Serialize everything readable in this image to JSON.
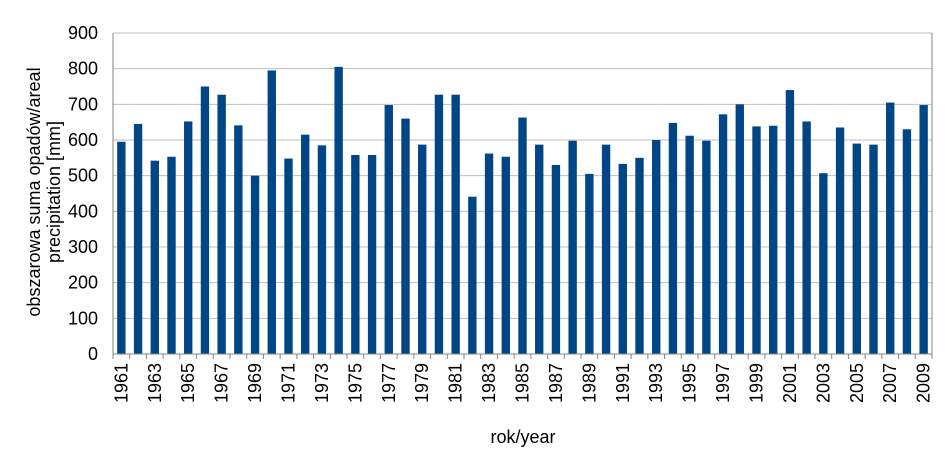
{
  "chart_data": {
    "type": "bar",
    "title": "",
    "xlabel": "rok/year",
    "ylabel_lines": [
      "obszarowa suma opadów/areal",
      "precipitation [mm]"
    ],
    "ylim": [
      0,
      900
    ],
    "yticks": [
      0,
      100,
      200,
      300,
      400,
      500,
      600,
      700,
      800,
      900
    ],
    "grid": "horizontal",
    "legend": "none",
    "bar_color": "#004586",
    "categories": [
      "1961",
      "1962",
      "1963",
      "1964",
      "1965",
      "1966",
      "1967",
      "1968",
      "1969",
      "1970",
      "1971",
      "1972",
      "1973",
      "1974",
      "1975",
      "1976",
      "1977",
      "1978",
      "1979",
      "1980",
      "1981",
      "1982",
      "1983",
      "1984",
      "1985",
      "1986",
      "1987",
      "1988",
      "1989",
      "1990",
      "1991",
      "1992",
      "1993",
      "1994",
      "1995",
      "1996",
      "1997",
      "1998",
      "1999",
      "2000",
      "2001",
      "2002",
      "2003",
      "2004",
      "2005",
      "2006",
      "2007",
      "2008",
      "2009"
    ],
    "tick_labels": [
      "1961",
      "1963",
      "1965",
      "1967",
      "1969",
      "1971",
      "1973",
      "1975",
      "1977",
      "1979",
      "1981",
      "1983",
      "1985",
      "1987",
      "1989",
      "1991",
      "1993",
      "1995",
      "1997",
      "1999",
      "2001",
      "2003",
      "2005",
      "2007",
      "2009"
    ],
    "values": [
      595,
      645,
      542,
      553,
      652,
      750,
      727,
      641,
      500,
      795,
      548,
      615,
      585,
      805,
      558,
      558,
      698,
      660,
      587,
      727,
      727,
      441,
      562,
      553,
      663,
      587,
      530,
      598,
      505,
      587,
      533,
      550,
      600,
      648,
      612,
      598,
      672,
      700,
      638,
      640,
      740,
      652,
      507,
      635,
      590,
      587,
      705,
      630,
      698
    ]
  }
}
